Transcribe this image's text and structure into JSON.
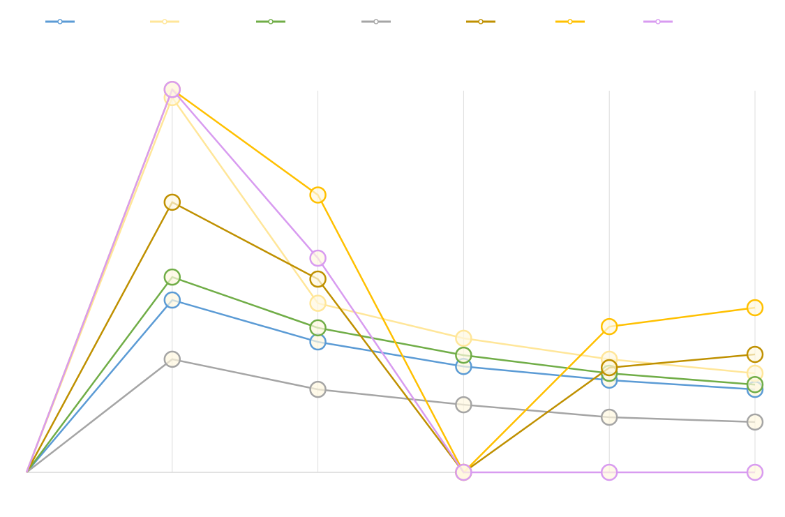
{
  "chart_data": {
    "type": "line",
    "categories": [
      null,
      null,
      null,
      null,
      null,
      null
    ],
    "ylim": [
      0,
      100
    ],
    "grid": true,
    "legend": "top",
    "series": [
      {
        "color": "#5b9bd5",
        "values": [
          0,
          42.8,
          32.4,
          26.3,
          22.9,
          20.6
        ]
      },
      {
        "color": "#ffe699",
        "values": [
          0,
          93.1,
          42.0,
          33.3,
          28.1,
          24.6
        ]
      },
      {
        "color": "#70ad47",
        "values": [
          0,
          48.5,
          35.9,
          29.1,
          24.6,
          21.8
        ]
      },
      {
        "color": "#a5a5a5",
        "values": [
          0,
          28.1,
          20.6,
          16.8,
          13.7,
          12.5
        ]
      },
      {
        "color": "#bf9000",
        "values": [
          0,
          67.1,
          48.0,
          0,
          26.0,
          29.3
        ]
      },
      {
        "color": "#ffc000",
        "values": [
          0,
          95.1,
          68.9,
          0,
          36.2,
          40.9
        ]
      },
      {
        "color": "#d89bf0",
        "values": [
          0,
          95.1,
          53.2,
          0,
          0,
          0
        ]
      }
    ]
  }
}
